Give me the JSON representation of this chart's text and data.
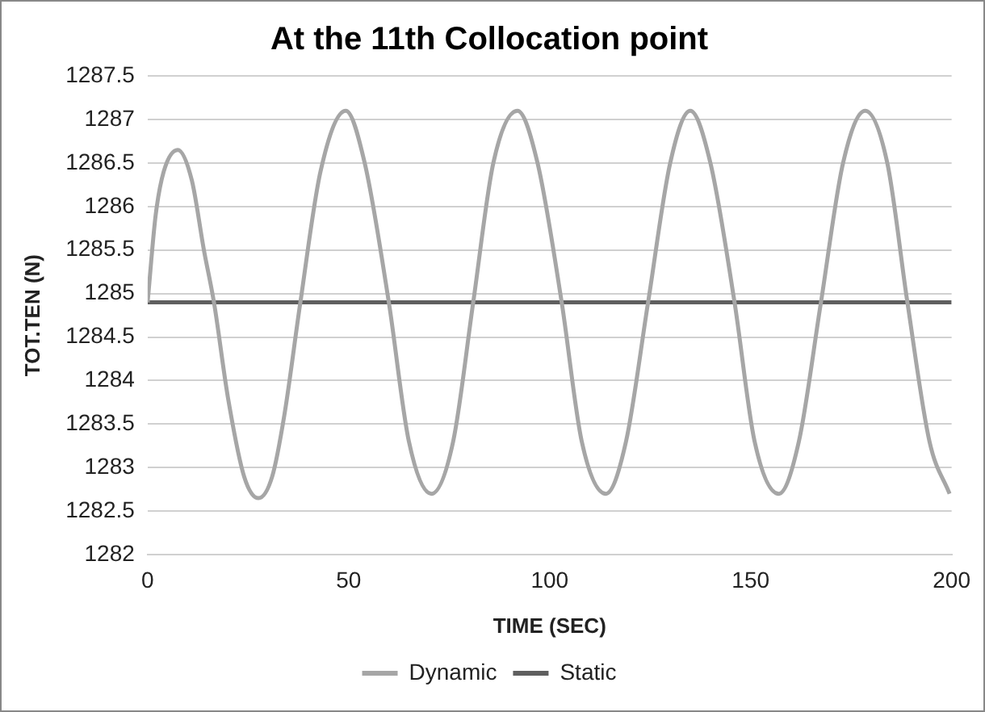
{
  "chart_data": {
    "type": "line",
    "title": "At the 11th Collocation point",
    "xlabel": "TIME (SEC)",
    "ylabel": "TOT.TEN (N)",
    "xlim": [
      0,
      200
    ],
    "xticks": [
      0,
      50,
      100,
      150,
      200
    ],
    "ylim": [
      1282,
      1287.5
    ],
    "yticks": [
      1282,
      1282.5,
      1283,
      1283.5,
      1284,
      1284.5,
      1285,
      1285.5,
      1286,
      1286.5,
      1287,
      1287.5
    ],
    "grid": "y",
    "legend": "bottom",
    "marker": "none",
    "line_style": "solid",
    "series": [
      {
        "name": "Dynamic",
        "color": "#a6a6a6",
        "x": [
          0,
          2,
          4,
          7.5,
          11,
          14,
          16.5,
          20,
          24,
          27.6,
          31,
          34,
          38,
          43,
          49.3,
          54,
          60,
          65,
          70.6,
          76,
          81,
          86,
          92,
          97,
          103,
          108,
          114,
          119,
          124.5,
          130,
          135,
          140,
          146,
          151,
          157,
          162,
          167.5,
          173,
          178.5,
          184,
          189,
          194.5,
          199.5
        ],
        "values": [
          1284.9,
          1285.9,
          1286.4,
          1286.65,
          1286.3,
          1285.5,
          1284.9,
          1283.8,
          1282.9,
          1282.65,
          1282.9,
          1283.6,
          1284.9,
          1286.4,
          1287.1,
          1286.5,
          1284.9,
          1283.3,
          1282.7,
          1283.3,
          1284.9,
          1286.5,
          1287.1,
          1286.5,
          1284.9,
          1283.3,
          1282.7,
          1283.3,
          1284.9,
          1286.5,
          1287.1,
          1286.5,
          1284.9,
          1283.3,
          1282.7,
          1283.3,
          1284.9,
          1286.5,
          1287.1,
          1286.5,
          1284.9,
          1283.3,
          1282.7
        ]
      },
      {
        "name": "Static",
        "color": "#5f5f5f",
        "x": [
          0,
          200
        ],
        "values": [
          1284.9,
          1284.9
        ]
      }
    ]
  }
}
